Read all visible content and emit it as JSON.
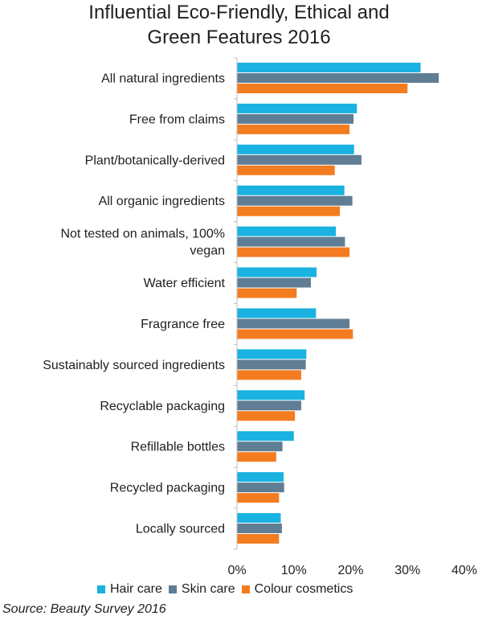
{
  "chart_data": {
    "type": "bar",
    "orientation": "horizontal",
    "title": "Influential Eco-Friendly, Ethical and Green Features 2016",
    "title_lines": [
      "Influential Eco-Friendly, Ethical and",
      "Green Features 2016"
    ],
    "categories": [
      "All natural ingredients",
      "Free from claims",
      "Plant/botanically-derived",
      "All organic ingredients",
      "Not tested on animals, 100% vegan",
      "Water efficient",
      "Fragrance free",
      "Sustainably sourced ingredients",
      "Recyclable packaging",
      "Refillable bottles",
      "Recycled packaging",
      "Locally sourced"
    ],
    "category_lines": [
      [
        "All natural ingredients"
      ],
      [
        "Free from claims"
      ],
      [
        "Plant/botanically-derived"
      ],
      [
        "All organic ingredients"
      ],
      [
        "Not tested on animals, 100%",
        "vegan"
      ],
      [
        "Water efficient"
      ],
      [
        "Fragrance free"
      ],
      [
        "Sustainably sourced ingredients"
      ],
      [
        "Recyclable packaging"
      ],
      [
        "Refillable bottles"
      ],
      [
        "Recycled packaging"
      ],
      [
        "Locally sourced"
      ]
    ],
    "series": [
      {
        "name": "Hair care",
        "color": "#1ab2e0",
        "values": [
          32.3,
          21.1,
          20.6,
          18.9,
          17.4,
          14.0,
          13.9,
          12.2,
          11.9,
          10.0,
          8.2,
          7.7
        ]
      },
      {
        "name": "Skin care",
        "color": "#5f7e95",
        "values": [
          35.5,
          20.5,
          21.9,
          20.3,
          19.0,
          13.0,
          19.8,
          12.1,
          11.3,
          8.0,
          8.3,
          7.9
        ]
      },
      {
        "name": "Colour cosmetics",
        "color": "#f47c20",
        "values": [
          30.0,
          19.8,
          17.2,
          18.1,
          19.8,
          10.5,
          20.4,
          11.3,
          10.2,
          6.9,
          7.4,
          7.4
        ]
      }
    ],
    "xlim": [
      0,
      40
    ],
    "xticks": [
      "0%",
      "10%",
      "20%",
      "30%",
      "40%"
    ],
    "grid": false,
    "legend_position": "bottom"
  },
  "source": "Source: Beauty Survey 2016"
}
